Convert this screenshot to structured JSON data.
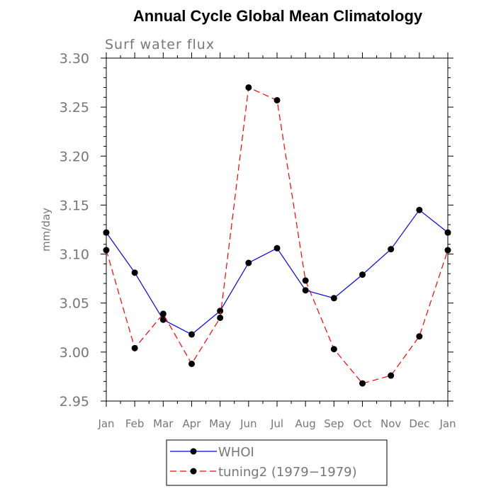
{
  "chart_data": {
    "type": "line",
    "title": "Annual Cycle Global Mean Climatology",
    "subtitle": "Surf water flux",
    "ylabel": "mm/day",
    "xlabel": "",
    "categories": [
      "Jan",
      "Feb",
      "Mar",
      "Apr",
      "May",
      "Jun",
      "Jul",
      "Aug",
      "Sep",
      "Oct",
      "Nov",
      "Dec",
      "Jan"
    ],
    "ylim": [
      2.95,
      3.3
    ],
    "yticks": [
      "2.95",
      "3.00",
      "3.05",
      "3.10",
      "3.15",
      "3.20",
      "3.25",
      "3.30"
    ],
    "grid": false,
    "legend_position": "bottom",
    "series": [
      {
        "name": "WHOI",
        "color": "#0000ff",
        "dash": "solid",
        "marker": "filled-circle",
        "values": [
          3.122,
          3.081,
          3.033,
          3.018,
          3.042,
          3.091,
          3.106,
          3.063,
          3.055,
          3.079,
          3.105,
          3.145,
          3.122
        ]
      },
      {
        "name": "tuning2 (1979−1979)",
        "color": "#ff0000",
        "dash": "dashed",
        "marker": "filled-circle",
        "values": [
          3.104,
          3.004,
          3.039,
          2.988,
          3.035,
          3.27,
          3.257,
          3.073,
          3.003,
          2.968,
          2.976,
          3.016,
          3.104
        ]
      }
    ]
  }
}
